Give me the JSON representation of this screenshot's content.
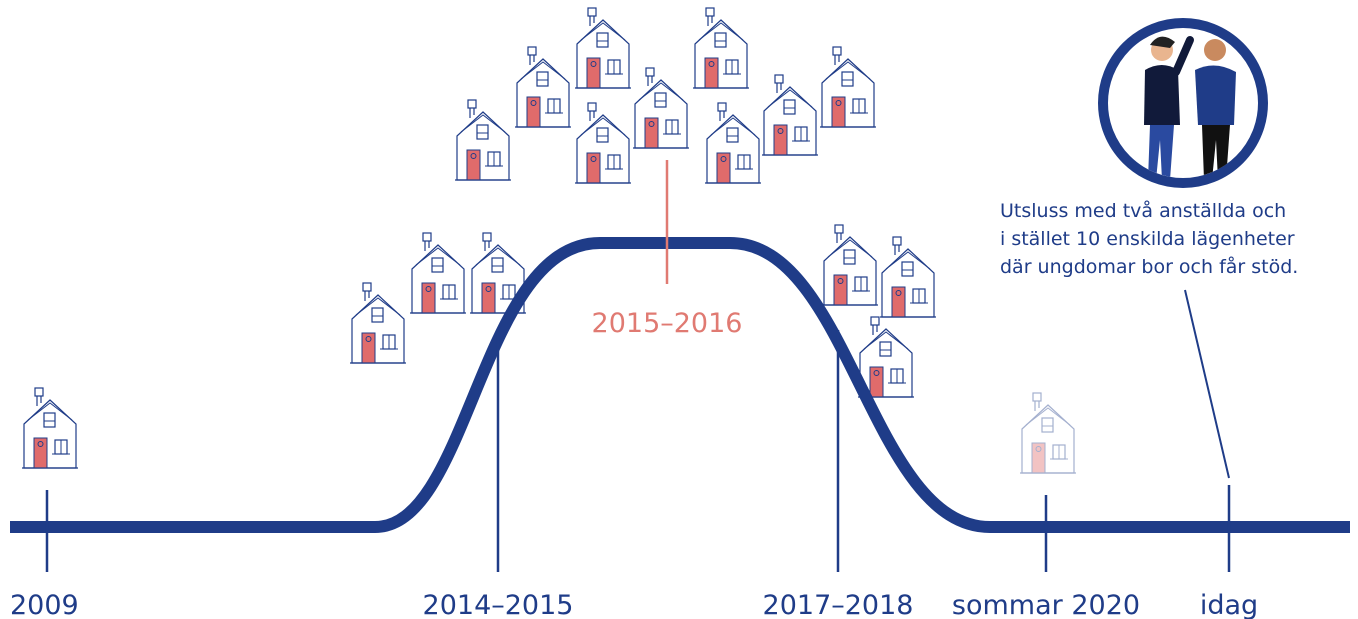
{
  "timeline": {
    "labels": [
      "2009",
      "2014–2015",
      "2015–2016",
      "2017–2018",
      "sommar 2020",
      "idag"
    ]
  },
  "annotation": {
    "lines": [
      "Utsluss med två anställda och",
      "i stället 10 enskilda lägenheter",
      "där ungdomar bor och får stöd."
    ]
  }
}
